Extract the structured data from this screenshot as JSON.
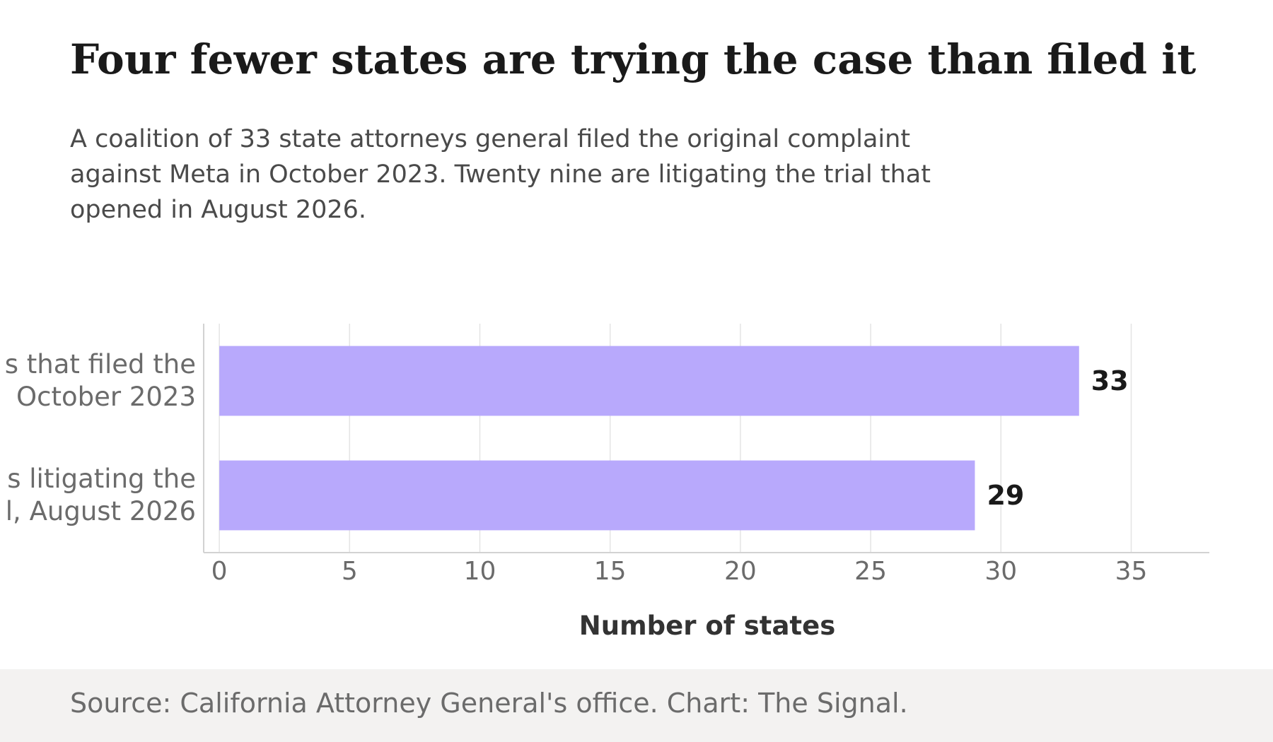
{
  "header": {
    "title": "Four fewer states are trying the case than filed it",
    "subtitle": "A coalition of 33 state attorneys general filed the original complaint against Meta in October 2023. Twenty nine are litigating the trial that opened in August 2026."
  },
  "footer": {
    "source": "Source: California Attorney General's office. Chart: The Signal."
  },
  "chart_data": {
    "type": "bar",
    "orientation": "horizontal",
    "categories": [
      [
        "s that filed the",
        "October 2023"
      ],
      [
        "s litigating the",
        "l, August 2026"
      ]
    ],
    "values": [
      33,
      29
    ],
    "data_labels": [
      "33",
      "29"
    ],
    "xlabel": "Number of states",
    "ylabel": "",
    "xlim": [
      -0.6,
      38
    ],
    "xticks": [
      0,
      5,
      10,
      15,
      20,
      25,
      30,
      35
    ],
    "grid": "vertical",
    "colors": {
      "bar": "#b8a9fc",
      "grid": "#e4e4e4",
      "axis": "#d2d2d2",
      "tick_label": "#6b6b6b",
      "category_label": "#6b6b6b",
      "data_label": "#1a1a1a",
      "axis_title": "#333333"
    }
  }
}
